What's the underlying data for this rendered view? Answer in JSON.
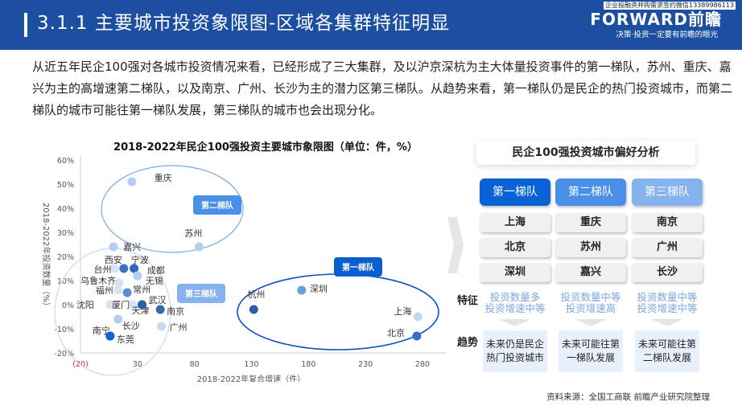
{
  "header": {
    "title": "3.1.1 主要城市投资象限图-区域各集群特征明显",
    "brand_top": "企业投融资并购需求签约微信13389986113",
    "brand_logo": "FORWARD前瞻",
    "brand_sub": "决策·投资一定要有前瞻的眼光"
  },
  "intro": "从近五年民企100强对各城市投资情况来看，已经形成了三大集群，及以沪京深杭为主大体量投资事件的第一梯队，苏州、重庆、嘉兴为主的高增速第二梯队，以及南京、广州、长沙为主的潜力区第三梯队。从趋势来看，第一梯队仍是民企的热门投资城市，而第二梯队的城市可能往第一梯队发展，第三梯队的城市也会出现分化。",
  "chart_data": {
    "type": "scatter",
    "title": "2018-2022年民企100强投资主要城市象限图（单位：件，%）",
    "xlabel": "2018-2022年复合增速（件）",
    "ylabel": "2018-2022年投资数量（%）",
    "xlim": [
      -20,
      300
    ],
    "ylim": [
      -20,
      60
    ],
    "xticks": [
      "(20)",
      "30",
      "80",
      "130",
      "180",
      "230",
      "280"
    ],
    "yticks": [
      "60%",
      "50%",
      "40%",
      "30%",
      "20%",
      "10%",
      "0%",
      "-10%",
      "-20%"
    ],
    "grid": false,
    "points": [
      {
        "label": "重庆",
        "x": 25,
        "y": 51,
        "color": "#b5cdf0"
      },
      {
        "label": "嘉兴",
        "x": 9,
        "y": 24,
        "color": "#b5cdf0"
      },
      {
        "label": "苏州",
        "x": 84,
        "y": 24,
        "color": "#b5cdf0"
      },
      {
        "label": "台州",
        "x": 10,
        "y": 15,
        "color": "#d7e3f5"
      },
      {
        "label": "西安",
        "x": 18,
        "y": 15,
        "color": "#3a6fc4"
      },
      {
        "label": "宁波",
        "x": 27,
        "y": 15,
        "color": "#2e66c0"
      },
      {
        "label": "成都",
        "x": 30,
        "y": 12,
        "color": "#b5cdf0"
      },
      {
        "label": "无锡",
        "x": 30,
        "y": 12,
        "color": "#b5cdf0"
      },
      {
        "label": "乌鲁木齐",
        "x": 14,
        "y": 9,
        "color": "#d7e3f5"
      },
      {
        "label": "福州",
        "x": 13,
        "y": 6,
        "color": "#d7e3f5"
      },
      {
        "label": "常州",
        "x": 21,
        "y": 5,
        "color": "#5a8fd8"
      },
      {
        "label": "沈阳",
        "x": 6,
        "y": 0,
        "color": "#d7e3f5"
      },
      {
        "label": "厦门",
        "x": 26,
        "y": 0,
        "color": "#d7e3f5"
      },
      {
        "label": "天津",
        "x": 34,
        "y": 0,
        "color": "#2e5fa8"
      },
      {
        "label": "武汉",
        "x": 34,
        "y": 0,
        "color": "#2e5fa8"
      },
      {
        "label": "南京",
        "x": 50,
        "y": -2,
        "color": "#3a66aa"
      },
      {
        "label": "长沙",
        "x": 13,
        "y": -6,
        "color": "#b5cdf0"
      },
      {
        "label": "广州",
        "x": 51,
        "y": -9,
        "color": "#c5d8f3"
      },
      {
        "label": "南宁",
        "x": 6,
        "y": -13,
        "color": "#1a5fd0"
      },
      {
        "label": "东莞",
        "x": 6,
        "y": -13,
        "color": "#1a5fd0"
      },
      {
        "label": "杭州",
        "x": 132,
        "y": -2,
        "color": "#2f5ea3"
      },
      {
        "label": "深圳",
        "x": 174,
        "y": 6,
        "color": "#6e9de0"
      },
      {
        "label": "上海",
        "x": 276,
        "y": -5,
        "color": "#c5d8f3"
      },
      {
        "label": "北京",
        "x": 275,
        "y": -13,
        "color": "#3470c8"
      }
    ],
    "annotations": [
      "第一梯队",
      "第二梯队",
      "第三梯队"
    ]
  },
  "panel": {
    "title": "民企100强投资城市偏好分析",
    "side_feature": "特征",
    "side_trend": "趋势",
    "tiers": [
      {
        "name": "第一梯队",
        "color": "#0a63d6",
        "cities": [
          "上海",
          "北京",
          "深圳"
        ],
        "feature": [
          "投资数量多",
          "投资增速中等"
        ],
        "trend": "未来仍是民企热门投资城市"
      },
      {
        "name": "第二梯队",
        "color": "#4a90e8",
        "cities": [
          "重庆",
          "苏州",
          "嘉兴"
        ],
        "feature": [
          "投资数量中等",
          "投资增速高"
        ],
        "trend": "未来可能往第一梯队发展"
      },
      {
        "name": "第三梯队",
        "color": "#86b2ee",
        "cities": [
          "南京",
          "广州",
          "长沙"
        ],
        "feature": [
          "投资数量中等",
          "投资增速中等"
        ],
        "trend": "未来可能往第二梯队发展"
      }
    ]
  },
  "source": "资料来源：全国工商联 前瞻产业研究院整理"
}
